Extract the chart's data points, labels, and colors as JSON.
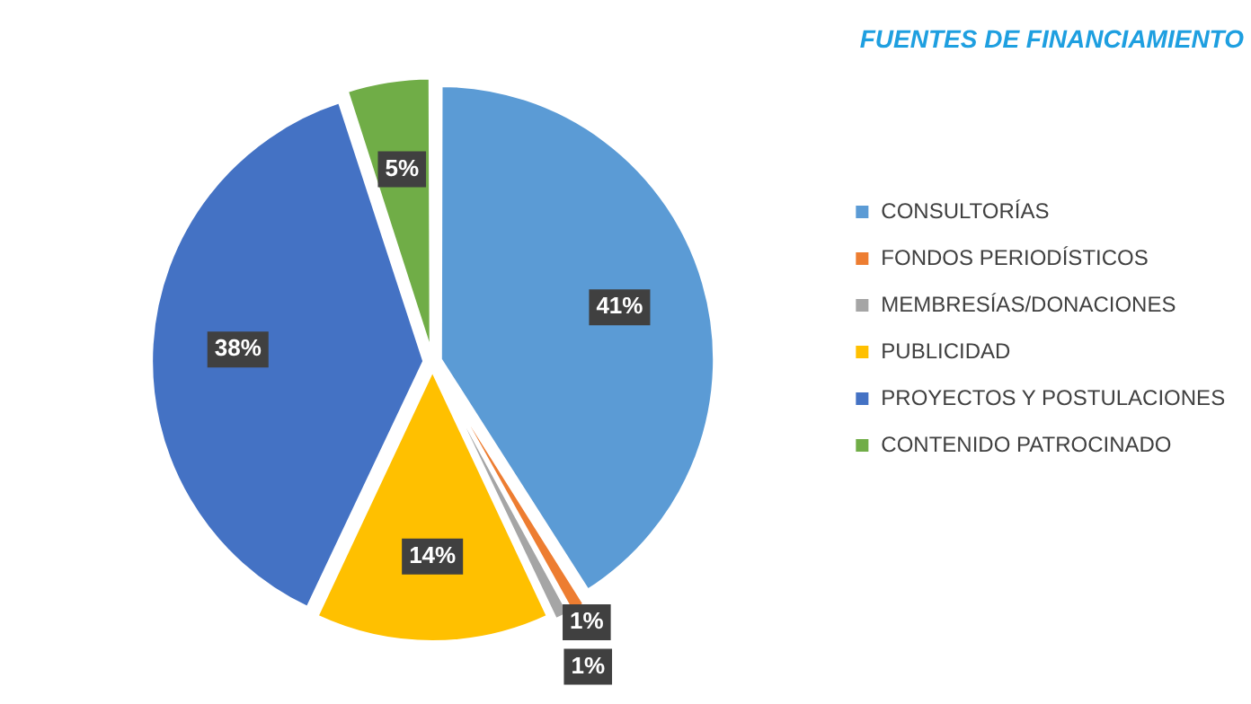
{
  "chart_data": {
    "type": "pie",
    "title": "FUENTES DE FINANCIAMIENTO",
    "categories": [
      "CONSULTORÍAS",
      "FONDOS PERIODÍSTICOS",
      "MEMBRESÍAS/DONACIONES",
      "PUBLICIDAD",
      "PROYECTOS Y POSTULACIONES",
      "CONTENIDO PATROCINADO"
    ],
    "values": [
      41,
      1,
      1,
      14,
      38,
      5
    ],
    "colors": [
      "#5b9bd5",
      "#ed7d31",
      "#a5a5a5",
      "#ffc000",
      "#4472c4",
      "#70ad47"
    ],
    "value_labels": [
      "41%",
      "1%",
      "1%",
      "14%",
      "38%",
      "5%"
    ],
    "legend": "right"
  }
}
